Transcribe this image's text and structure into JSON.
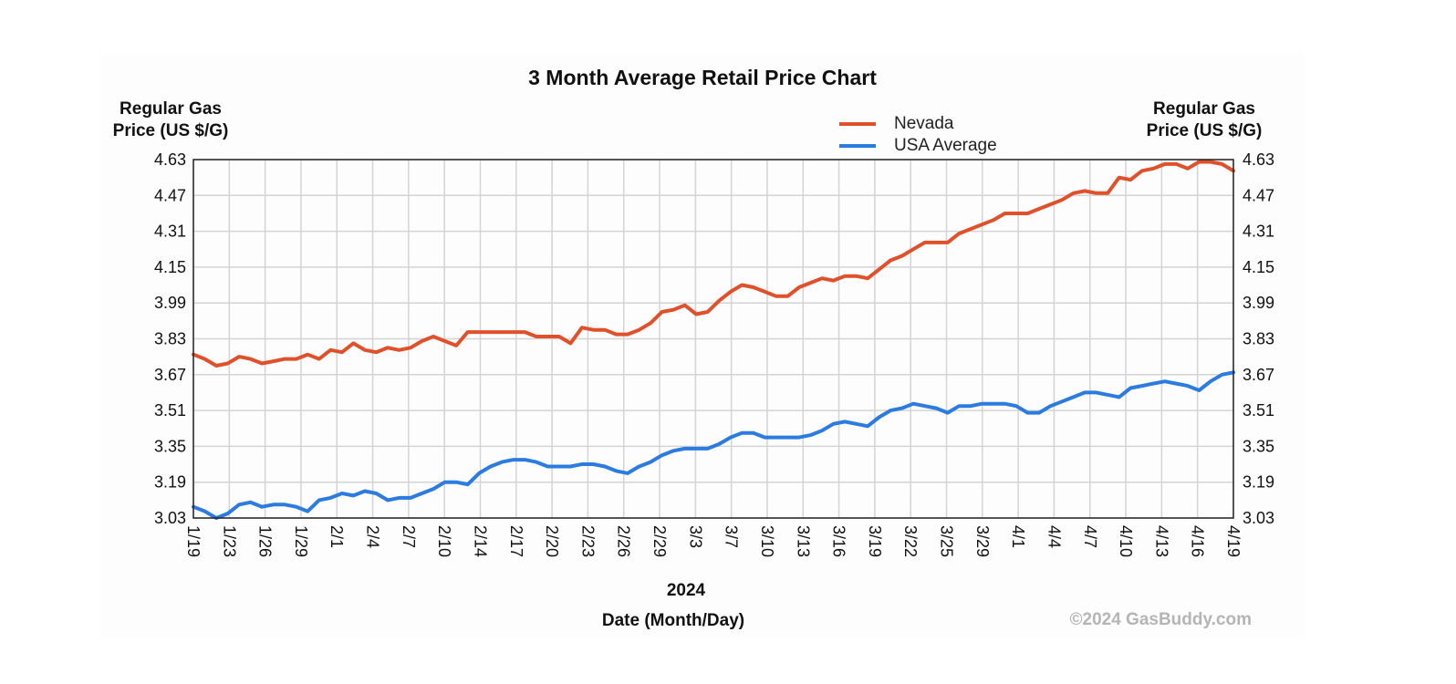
{
  "chart_data": {
    "type": "line",
    "title": "3 Month Average Retail Price Chart",
    "ylabel_left_line1": "Regular Gas",
    "ylabel_left_line2": "Price (US $/G)",
    "ylabel_right_line1": "Regular Gas",
    "ylabel_right_line2": "Price (US $/G)",
    "year_label": "2024",
    "xlabel": "Date (Month/Day)",
    "copyright": "©2024 GasBuddy.com",
    "ylim": [
      3.03,
      4.63
    ],
    "yticks": [
      "4.63",
      "4.47",
      "4.31",
      "4.15",
      "3.99",
      "3.83",
      "3.67",
      "3.51",
      "3.35",
      "3.19",
      "3.03"
    ],
    "x_range": [
      "2024-01-19",
      "2024-04-19"
    ],
    "x_tick_labels": [
      "1/19",
      "1/23",
      "1/26",
      "1/29",
      "2/1",
      "2/4",
      "2/7",
      "2/10",
      "2/14",
      "2/17",
      "2/20",
      "2/23",
      "2/26",
      "2/29",
      "3/3",
      "3/7",
      "3/10",
      "3/13",
      "3/16",
      "3/19",
      "3/22",
      "3/25",
      "3/29",
      "4/1",
      "4/4",
      "4/7",
      "4/10",
      "4/13",
      "4/16",
      "4/19"
    ],
    "grid": true,
    "legend_position": "top-right",
    "series": [
      {
        "name": "Nevada",
        "color": "#e0502a",
        "points": [
          [
            "2024-01-19",
            3.76
          ],
          [
            "2024-01-20",
            3.74
          ],
          [
            "2024-01-21",
            3.71
          ],
          [
            "2024-01-22",
            3.72
          ],
          [
            "2024-01-23",
            3.75
          ],
          [
            "2024-01-24",
            3.74
          ],
          [
            "2024-01-25",
            3.72
          ],
          [
            "2024-01-26",
            3.73
          ],
          [
            "2024-01-27",
            3.74
          ],
          [
            "2024-01-28",
            3.74
          ],
          [
            "2024-01-29",
            3.76
          ],
          [
            "2024-01-30",
            3.74
          ],
          [
            "2024-01-31",
            3.78
          ],
          [
            "2024-02-01",
            3.77
          ],
          [
            "2024-02-02",
            3.81
          ],
          [
            "2024-02-03",
            3.78
          ],
          [
            "2024-02-04",
            3.77
          ],
          [
            "2024-02-05",
            3.79
          ],
          [
            "2024-02-06",
            3.78
          ],
          [
            "2024-02-07",
            3.79
          ],
          [
            "2024-02-08",
            3.82
          ],
          [
            "2024-02-09",
            3.84
          ],
          [
            "2024-02-10",
            3.82
          ],
          [
            "2024-02-11",
            3.8
          ],
          [
            "2024-02-12",
            3.86
          ],
          [
            "2024-02-13",
            3.86
          ],
          [
            "2024-02-14",
            3.86
          ],
          [
            "2024-02-15",
            3.86
          ],
          [
            "2024-02-16",
            3.86
          ],
          [
            "2024-02-17",
            3.86
          ],
          [
            "2024-02-18",
            3.84
          ],
          [
            "2024-02-19",
            3.84
          ],
          [
            "2024-02-20",
            3.84
          ],
          [
            "2024-02-21",
            3.81
          ],
          [
            "2024-02-22",
            3.88
          ],
          [
            "2024-02-23",
            3.87
          ],
          [
            "2024-02-24",
            3.87
          ],
          [
            "2024-02-25",
            3.85
          ],
          [
            "2024-02-26",
            3.85
          ],
          [
            "2024-02-27",
            3.87
          ],
          [
            "2024-02-28",
            3.9
          ],
          [
            "2024-02-29",
            3.95
          ],
          [
            "2024-03-01",
            3.96
          ],
          [
            "2024-03-02",
            3.98
          ],
          [
            "2024-03-03",
            3.94
          ],
          [
            "2024-03-04",
            3.95
          ],
          [
            "2024-03-05",
            4.0
          ],
          [
            "2024-03-06",
            4.04
          ],
          [
            "2024-03-07",
            4.07
          ],
          [
            "2024-03-08",
            4.06
          ],
          [
            "2024-03-09",
            4.04
          ],
          [
            "2024-03-10",
            4.02
          ],
          [
            "2024-03-11",
            4.02
          ],
          [
            "2024-03-12",
            4.06
          ],
          [
            "2024-03-13",
            4.08
          ],
          [
            "2024-03-14",
            4.1
          ],
          [
            "2024-03-15",
            4.09
          ],
          [
            "2024-03-16",
            4.11
          ],
          [
            "2024-03-17",
            4.11
          ],
          [
            "2024-03-18",
            4.1
          ],
          [
            "2024-03-19",
            4.14
          ],
          [
            "2024-03-20",
            4.18
          ],
          [
            "2024-03-21",
            4.2
          ],
          [
            "2024-03-22",
            4.23
          ],
          [
            "2024-03-23",
            4.26
          ],
          [
            "2024-03-24",
            4.26
          ],
          [
            "2024-03-25",
            4.26
          ],
          [
            "2024-03-26",
            4.3
          ],
          [
            "2024-03-27",
            4.32
          ],
          [
            "2024-03-28",
            4.34
          ],
          [
            "2024-03-29",
            4.36
          ],
          [
            "2024-03-30",
            4.39
          ],
          [
            "2024-03-31",
            4.39
          ],
          [
            "2024-04-01",
            4.39
          ],
          [
            "2024-04-02",
            4.41
          ],
          [
            "2024-04-03",
            4.43
          ],
          [
            "2024-04-04",
            4.45
          ],
          [
            "2024-04-05",
            4.48
          ],
          [
            "2024-04-06",
            4.49
          ],
          [
            "2024-04-07",
            4.48
          ],
          [
            "2024-04-08",
            4.48
          ],
          [
            "2024-04-09",
            4.55
          ],
          [
            "2024-04-10",
            4.54
          ],
          [
            "2024-04-11",
            4.58
          ],
          [
            "2024-04-12",
            4.59
          ],
          [
            "2024-04-13",
            4.61
          ],
          [
            "2024-04-14",
            4.61
          ],
          [
            "2024-04-15",
            4.59
          ],
          [
            "2024-04-16",
            4.62
          ],
          [
            "2024-04-17",
            4.62
          ],
          [
            "2024-04-18",
            4.61
          ],
          [
            "2024-04-19",
            4.58
          ]
        ]
      },
      {
        "name": "USA Average",
        "color": "#2b7be0",
        "points": [
          [
            "2024-01-19",
            3.08
          ],
          [
            "2024-01-20",
            3.06
          ],
          [
            "2024-01-21",
            3.03
          ],
          [
            "2024-01-22",
            3.05
          ],
          [
            "2024-01-23",
            3.09
          ],
          [
            "2024-01-24",
            3.1
          ],
          [
            "2024-01-25",
            3.08
          ],
          [
            "2024-01-26",
            3.09
          ],
          [
            "2024-01-27",
            3.09
          ],
          [
            "2024-01-28",
            3.08
          ],
          [
            "2024-01-29",
            3.06
          ],
          [
            "2024-01-30",
            3.11
          ],
          [
            "2024-01-31",
            3.12
          ],
          [
            "2024-02-01",
            3.14
          ],
          [
            "2024-02-02",
            3.13
          ],
          [
            "2024-02-03",
            3.15
          ],
          [
            "2024-02-04",
            3.14
          ],
          [
            "2024-02-05",
            3.11
          ],
          [
            "2024-02-06",
            3.12
          ],
          [
            "2024-02-07",
            3.12
          ],
          [
            "2024-02-08",
            3.14
          ],
          [
            "2024-02-09",
            3.16
          ],
          [
            "2024-02-10",
            3.19
          ],
          [
            "2024-02-11",
            3.19
          ],
          [
            "2024-02-12",
            3.18
          ],
          [
            "2024-02-13",
            3.23
          ],
          [
            "2024-02-14",
            3.26
          ],
          [
            "2024-02-15",
            3.28
          ],
          [
            "2024-02-16",
            3.29
          ],
          [
            "2024-02-17",
            3.29
          ],
          [
            "2024-02-18",
            3.28
          ],
          [
            "2024-02-19",
            3.26
          ],
          [
            "2024-02-20",
            3.26
          ],
          [
            "2024-02-21",
            3.26
          ],
          [
            "2024-02-22",
            3.27
          ],
          [
            "2024-02-23",
            3.27
          ],
          [
            "2024-02-24",
            3.26
          ],
          [
            "2024-02-25",
            3.24
          ],
          [
            "2024-02-26",
            3.23
          ],
          [
            "2024-02-27",
            3.26
          ],
          [
            "2024-02-28",
            3.28
          ],
          [
            "2024-02-29",
            3.31
          ],
          [
            "2024-03-01",
            3.33
          ],
          [
            "2024-03-02",
            3.34
          ],
          [
            "2024-03-03",
            3.34
          ],
          [
            "2024-03-04",
            3.34
          ],
          [
            "2024-03-05",
            3.36
          ],
          [
            "2024-03-06",
            3.39
          ],
          [
            "2024-03-07",
            3.41
          ],
          [
            "2024-03-08",
            3.41
          ],
          [
            "2024-03-09",
            3.39
          ],
          [
            "2024-03-10",
            3.39
          ],
          [
            "2024-03-11",
            3.39
          ],
          [
            "2024-03-12",
            3.39
          ],
          [
            "2024-03-13",
            3.4
          ],
          [
            "2024-03-14",
            3.42
          ],
          [
            "2024-03-15",
            3.45
          ],
          [
            "2024-03-16",
            3.46
          ],
          [
            "2024-03-17",
            3.45
          ],
          [
            "2024-03-18",
            3.44
          ],
          [
            "2024-03-19",
            3.48
          ],
          [
            "2024-03-20",
            3.51
          ],
          [
            "2024-03-21",
            3.52
          ],
          [
            "2024-03-22",
            3.54
          ],
          [
            "2024-03-23",
            3.53
          ],
          [
            "2024-03-24",
            3.52
          ],
          [
            "2024-03-25",
            3.5
          ],
          [
            "2024-03-26",
            3.53
          ],
          [
            "2024-03-27",
            3.53
          ],
          [
            "2024-03-28",
            3.54
          ],
          [
            "2024-03-29",
            3.54
          ],
          [
            "2024-03-30",
            3.54
          ],
          [
            "2024-03-31",
            3.53
          ],
          [
            "2024-04-01",
            3.5
          ],
          [
            "2024-04-02",
            3.5
          ],
          [
            "2024-04-03",
            3.53
          ],
          [
            "2024-04-04",
            3.55
          ],
          [
            "2024-04-05",
            3.57
          ],
          [
            "2024-04-06",
            3.59
          ],
          [
            "2024-04-07",
            3.59
          ],
          [
            "2024-04-08",
            3.58
          ],
          [
            "2024-04-09",
            3.57
          ],
          [
            "2024-04-10",
            3.61
          ],
          [
            "2024-04-11",
            3.62
          ],
          [
            "2024-04-12",
            3.63
          ],
          [
            "2024-04-13",
            3.64
          ],
          [
            "2024-04-14",
            3.63
          ],
          [
            "2024-04-15",
            3.62
          ],
          [
            "2024-04-16",
            3.6
          ],
          [
            "2024-04-17",
            3.64
          ],
          [
            "2024-04-18",
            3.67
          ],
          [
            "2024-04-19",
            3.68
          ]
        ]
      }
    ]
  }
}
